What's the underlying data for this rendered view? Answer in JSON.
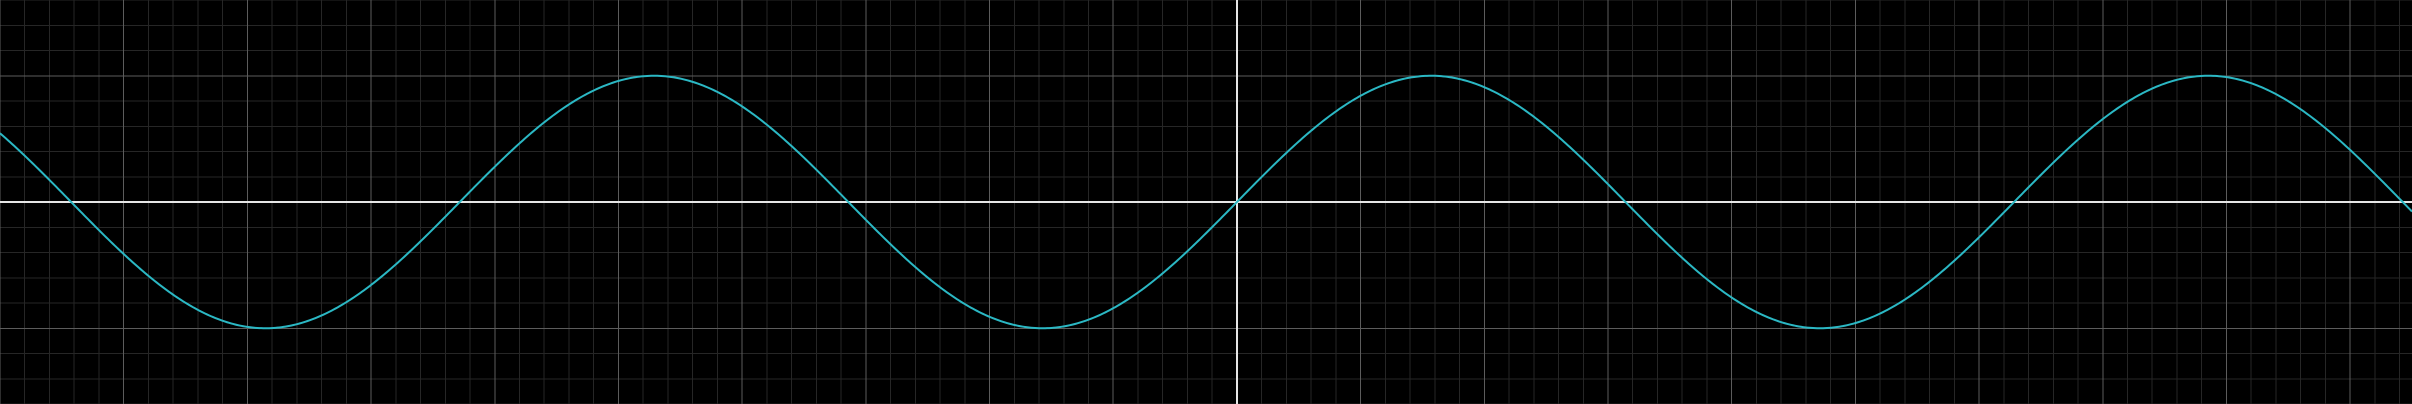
{
  "chart_data": {
    "type": "line",
    "function": "sin(x)",
    "title": "",
    "xlabel": "",
    "ylabel": "",
    "xlim": [
      -10,
      9.5
    ],
    "ylim": [
      -1.6,
      1.6
    ],
    "x_major_step": 1,
    "y_major_step": 1,
    "minor_divisions": 5,
    "grid": true,
    "series": [
      {
        "x": [
          -10,
          -9.5,
          -9,
          -8.5,
          -8,
          -7.5,
          -7,
          -6.5,
          -6,
          -5.5,
          -5,
          -4.5,
          -4,
          -3.5,
          -3,
          -2.5,
          -2,
          -1.5,
          -1,
          -0.5,
          0,
          0.5,
          1,
          1.5,
          2,
          2.5,
          3,
          3.5,
          4,
          4.5,
          5,
          5.5,
          6,
          6.5,
          7,
          7.5,
          8,
          8.5,
          9,
          9.5
        ],
        "y": [
          0.544,
          0.075,
          -0.412,
          -0.798,
          -0.989,
          -0.938,
          -0.657,
          -0.215,
          0.279,
          0.706,
          0.959,
          0.978,
          0.757,
          0.351,
          -0.141,
          -0.598,
          -0.909,
          -0.997,
          -0.841,
          -0.479,
          0,
          0.479,
          0.841,
          0.997,
          0.909,
          0.598,
          0.141,
          -0.351,
          -0.757,
          -0.978,
          -0.959,
          -0.706,
          -0.279,
          0.215,
          0.657,
          0.938,
          0.989,
          0.798,
          0.412,
          -0.075
        ]
      }
    ]
  },
  "colors": {
    "background": "#000000",
    "minor_grid": "#262626",
    "major_grid": "#5c5c5c",
    "axis": "#e6e6e6",
    "curve": "#2bb8c4"
  }
}
